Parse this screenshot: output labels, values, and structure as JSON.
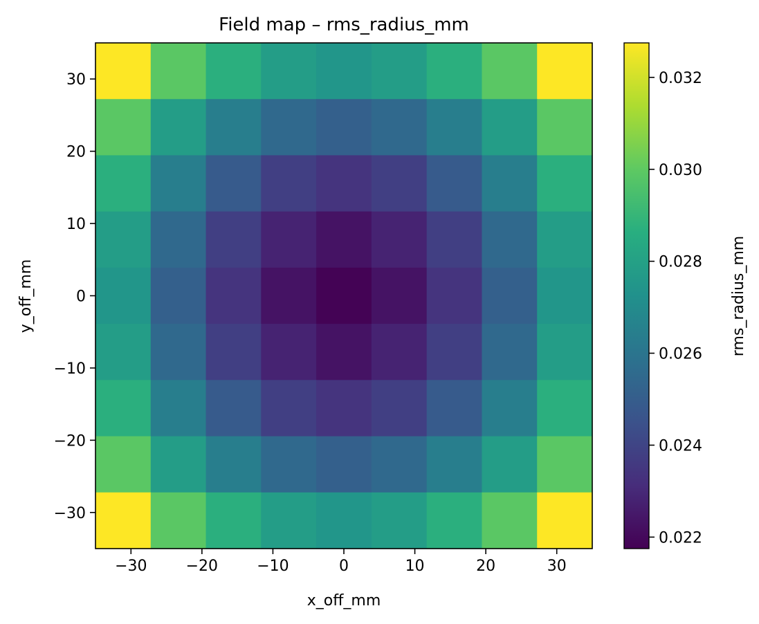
{
  "chart_data": {
    "type": "heatmap",
    "title": "Field map – rms_radius_mm",
    "xlabel": "x_off_mm",
    "ylabel": "y_off_mm",
    "colorbar_label": "rms_radius_mm",
    "colormap": "viridis",
    "x": [
      -31.1,
      -23.3,
      -15.6,
      -7.8,
      0,
      7.8,
      15.6,
      23.3,
      31.1
    ],
    "y": [
      31.1,
      23.3,
      15.6,
      7.8,
      0,
      -7.8,
      -15.6,
      -23.3,
      -31.1
    ],
    "xlim": [
      -35,
      35
    ],
    "ylim": [
      -35,
      35
    ],
    "x_ticks": [
      -30,
      -20,
      -10,
      0,
      10,
      20,
      30
    ],
    "x_tick_labels": [
      "−30",
      "−20",
      "−10",
      "0",
      "10",
      "20",
      "30"
    ],
    "y_ticks": [
      30,
      20,
      10,
      0,
      -10,
      -20,
      -30
    ],
    "y_tick_labels": [
      "30",
      "20",
      "10",
      "0",
      "−10",
      "−20",
      "−30"
    ],
    "color_range": [
      0.02175,
      0.03275
    ],
    "colorbar_ticks": [
      0.022,
      0.024,
      0.026,
      0.028,
      0.03,
      0.032
    ],
    "colorbar_tick_labels": [
      "0.022",
      "0.024",
      "0.026",
      "0.028",
      "0.030",
      "0.032"
    ],
    "values": [
      [
        0.0328,
        0.0299,
        0.0287,
        0.0278,
        0.0275,
        0.0278,
        0.0287,
        0.0299,
        0.0328
      ],
      [
        0.0299,
        0.0278,
        0.0264,
        0.0255,
        0.0251,
        0.0255,
        0.0264,
        0.0278,
        0.0299
      ],
      [
        0.0287,
        0.0264,
        0.0249,
        0.0238,
        0.0234,
        0.0238,
        0.0249,
        0.0264,
        0.0287
      ],
      [
        0.0278,
        0.0255,
        0.0238,
        0.0228,
        0.0223,
        0.0228,
        0.0238,
        0.0255,
        0.0278
      ],
      [
        0.0275,
        0.0251,
        0.0234,
        0.0223,
        0.0218,
        0.0223,
        0.0234,
        0.0251,
        0.0275
      ],
      [
        0.0278,
        0.0255,
        0.0238,
        0.0228,
        0.0223,
        0.0228,
        0.0238,
        0.0255,
        0.0278
      ],
      [
        0.0287,
        0.0264,
        0.0249,
        0.0238,
        0.0234,
        0.0238,
        0.0249,
        0.0264,
        0.0287
      ],
      [
        0.0299,
        0.0278,
        0.0264,
        0.0255,
        0.0251,
        0.0255,
        0.0264,
        0.0278,
        0.0299
      ],
      [
        0.0328,
        0.0299,
        0.0287,
        0.0278,
        0.0275,
        0.0278,
        0.0287,
        0.0299,
        0.0328
      ]
    ]
  }
}
